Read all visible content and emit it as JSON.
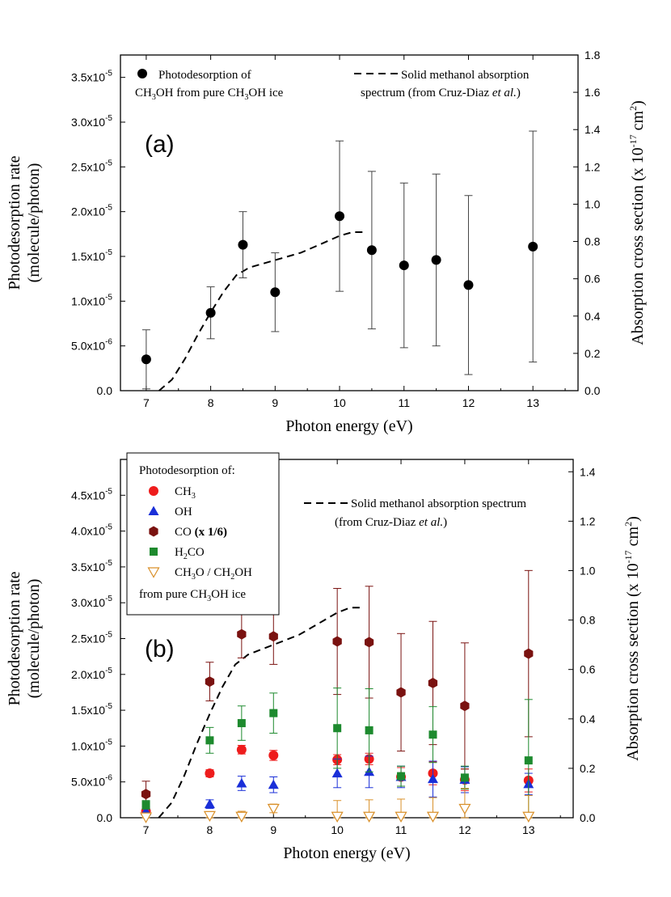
{
  "chart_data": [
    {
      "type": "scatter",
      "panel_label": "(a)",
      "xlabel": "Photon energy (eV)",
      "ylabel": [
        "Photodesorption rate",
        "(molecule/photon)"
      ],
      "y2label": [
        "Absorption cross section (x 10",
        "-17",
        " cm",
        "2",
        ")"
      ],
      "xlim": [
        6.6,
        13.7
      ],
      "ylim": [
        0,
        3.75e-05
      ],
      "y2lim": [
        0,
        1.8
      ],
      "x_ticks": [
        7,
        8,
        9,
        10,
        11,
        12,
        13
      ],
      "y_ticks": [
        {
          "value": 0,
          "base": "0.0",
          "exp": ""
        },
        {
          "value": 5e-06,
          "base": "5.0x10",
          "exp": "-6"
        },
        {
          "value": 1e-05,
          "base": "1.0x10",
          "exp": "-5"
        },
        {
          "value": 1.5e-05,
          "base": "1.5x10",
          "exp": "-5"
        },
        {
          "value": 2e-05,
          "base": "2.0x10",
          "exp": "-5"
        },
        {
          "value": 2.5e-05,
          "base": "2.5x10",
          "exp": "-5"
        },
        {
          "value": 3e-05,
          "base": "3.0x10",
          "exp": "-5"
        },
        {
          "value": 3.5e-05,
          "base": "3.5x10",
          "exp": "-5"
        }
      ],
      "y2_ticks": [
        "0.0",
        "0.2",
        "0.4",
        "0.6",
        "0.8",
        "1.0",
        "1.2",
        "1.4",
        "1.6",
        "1.8"
      ],
      "legend": [
        {
          "symbol": "dot",
          "lines": [
            [
              "Photodesorption of"
            ],
            [
              "CH",
              {
                "sub": "3"
              },
              "OH from pure CH",
              {
                "sub": "3"
              },
              "OH ice"
            ]
          ]
        },
        {
          "symbol": "dash",
          "lines": [
            [
              "Solid methanol absorption"
            ],
            [
              "spectrum (from Cruz-Diaz ",
              {
                "i": "et al."
              },
              ")"
            ]
          ]
        }
      ],
      "series": [
        {
          "name": "CH3OH",
          "marker": "circle",
          "color": "#000000",
          "x": [
            7,
            8,
            8.5,
            9,
            10,
            10.5,
            11,
            11.5,
            12,
            13
          ],
          "y": [
            3.5e-06,
            8.7e-06,
            1.63e-05,
            1.1e-05,
            1.95e-05,
            1.57e-05,
            1.4e-05,
            1.46e-05,
            1.18e-05,
            1.61e-05
          ],
          "err": [
            3.3e-06,
            2.9e-06,
            3.7e-06,
            4.4e-06,
            8.4e-06,
            8.8e-06,
            9.2e-06,
            9.6e-06,
            1e-05,
            1.29e-05
          ]
        }
      ],
      "absorption_spectrum": {
        "name": "Solid methanol absorption spectrum",
        "axis": "y2",
        "x": [
          7.2,
          7.4,
          7.6,
          7.8,
          8.0,
          8.2,
          8.4,
          8.6,
          8.8,
          9.0,
          9.2,
          9.4,
          9.6,
          9.8,
          10.0,
          10.2,
          10.4
        ],
        "y": [
          0.0,
          0.06,
          0.17,
          0.3,
          0.42,
          0.53,
          0.62,
          0.66,
          0.68,
          0.7,
          0.72,
          0.74,
          0.77,
          0.8,
          0.83,
          0.85,
          0.85
        ]
      }
    },
    {
      "type": "scatter",
      "panel_label": "(b)",
      "xlabel": "Photon energy (eV)",
      "ylabel": [
        "Photodesorption rate",
        "(molecule/photon)"
      ],
      "y2label": [
        "Absorption cross section (x 10",
        "-17",
        " cm",
        "2",
        ")"
      ],
      "xlim": [
        6.6,
        13.7
      ],
      "ylim": [
        0,
        5e-05
      ],
      "y2lim": [
        0,
        1.45
      ],
      "x_ticks": [
        7,
        8,
        9,
        10,
        11,
        12,
        13
      ],
      "y_ticks": [
        {
          "value": 0,
          "base": "0.0",
          "exp": ""
        },
        {
          "value": 5e-06,
          "base": "5.0x10",
          "exp": "-6"
        },
        {
          "value": 1e-05,
          "base": "1.0x10",
          "exp": "-5"
        },
        {
          "value": 1.5e-05,
          "base": "1.5x10",
          "exp": "-5"
        },
        {
          "value": 2e-05,
          "base": "2.0x10",
          "exp": "-5"
        },
        {
          "value": 2.5e-05,
          "base": "2.5x10",
          "exp": "-5"
        },
        {
          "value": 3e-05,
          "base": "3.0x10",
          "exp": "-5"
        },
        {
          "value": 3.5e-05,
          "base": "3.5x10",
          "exp": "-5"
        },
        {
          "value": 4e-05,
          "base": "4.0x10",
          "exp": "-5"
        },
        {
          "value": 4.5e-05,
          "base": "4.5x10",
          "exp": "-5"
        }
      ],
      "y2_ticks": [
        "0.0",
        "0.2",
        "0.4",
        "0.6",
        "0.8",
        "1.0",
        "1.2",
        "1.4"
      ],
      "legend_title": "Photodesorption of:",
      "legend_footer": [
        "from pure CH",
        {
          "sub": "3"
        },
        "OH ice"
      ],
      "legend_dash": [
        [
          "Solid methanol absorption spectrum"
        ],
        [
          "(from Cruz-Diaz ",
          {
            "i": "et al."
          },
          ")"
        ]
      ],
      "series": [
        {
          "name": "CH3",
          "label": [
            "CH",
            {
              "sub": "3"
            }
          ],
          "marker": "circle",
          "color": "#ee1c1c",
          "x": [
            7,
            8,
            8.5,
            9,
            10,
            10.5,
            11,
            11.5,
            12,
            13
          ],
          "y": [
            9e-07,
            6.2e-06,
            9.5e-06,
            8.7e-06,
            8.1e-06,
            8.2e-06,
            5.7e-06,
            6.2e-06,
            5.3e-06,
            5.2e-06
          ],
          "err": [
            4e-07,
            5e-07,
            6e-07,
            7e-07,
            7e-07,
            8e-07,
            1.3e-06,
            1.6e-06,
            1.5e-06,
            1.6e-06
          ]
        },
        {
          "name": "OH",
          "label": [
            "OH"
          ],
          "marker": "triangle",
          "color": "#1a2fd8",
          "x": [
            7,
            8,
            8.5,
            9,
            10,
            10.5,
            11,
            11.5,
            12,
            13
          ],
          "y": [
            9e-07,
            1.9e-06,
            4.8e-06,
            4.6e-06,
            6.2e-06,
            6.4e-06,
            5.7e-06,
            5.4e-06,
            5.3e-06,
            4.7e-06
          ],
          "err": [
            3e-07,
            6e-07,
            1e-06,
            1.1e-06,
            2e-06,
            2.2e-06,
            1.5e-06,
            2.5e-06,
            1.8e-06,
            1.5e-06
          ]
        },
        {
          "name": "CO (x 1/6)",
          "label": [
            "CO ",
            {
              "b": "(x 1/6)"
            }
          ],
          "marker": "hexagon",
          "color": "#7a1210",
          "x": [
            7,
            8,
            8.5,
            9,
            10,
            10.5,
            11,
            11.5,
            12,
            13
          ],
          "y": [
            3.3e-06,
            1.9e-05,
            2.56e-05,
            2.53e-05,
            2.46e-05,
            2.45e-05,
            1.75e-05,
            1.88e-05,
            1.56e-05,
            2.29e-05
          ],
          "err": [
            1.8e-06,
            2.7e-06,
            3.3e-06,
            3.9e-06,
            7.4e-06,
            7.8e-06,
            8.2e-06,
            8.6e-06,
            8.8e-06,
            1.16e-05
          ]
        },
        {
          "name": "H2CO",
          "label": [
            "H",
            {
              "sub": "2"
            },
            "CO"
          ],
          "marker": "square",
          "color": "#1d8a2e",
          "x": [
            7,
            8,
            8.5,
            9,
            10,
            10.5,
            11,
            11.5,
            12,
            13
          ],
          "y": [
            1.8e-06,
            1.08e-05,
            1.32e-05,
            1.46e-05,
            1.25e-05,
            1.22e-05,
            5.8e-06,
            1.16e-05,
            5.6e-06,
            8e-06
          ],
          "err": [
            6e-07,
            1.8e-06,
            2.4e-06,
            2.8e-06,
            5.6e-06,
            5.8e-06,
            1.4e-06,
            3.9e-06,
            1.6e-06,
            8.5e-06
          ]
        },
        {
          "name": "CH3O / CH2OH",
          "label": [
            "CH",
            {
              "sub": "3"
            },
            "O / CH",
            {
              "sub": "2"
            },
            "OH"
          ],
          "marker": "triangle-down-open",
          "color": "#d9902a",
          "x": [
            7,
            8,
            8.5,
            9,
            10,
            10.5,
            11,
            11.5,
            12,
            13
          ],
          "y": [
            1e-07,
            3e-07,
            2e-07,
            1.3e-06,
            2e-07,
            2e-07,
            2e-07,
            2e-07,
            1.3e-06,
            2e-07
          ],
          "err": [
            2e-07,
            3.5e-07,
            7e-07,
            6e-07,
            2.2e-06,
            2.3e-06,
            2.4e-06,
            2.6e-06,
            2.8e-06,
            2.9e-06
          ]
        }
      ],
      "absorption_spectrum": {
        "name": "Solid methanol absorption spectrum",
        "axis": "y2",
        "x": [
          7.2,
          7.4,
          7.6,
          7.8,
          8.0,
          8.2,
          8.4,
          8.6,
          8.8,
          9.0,
          9.2,
          9.4,
          9.6,
          9.8,
          10.0,
          10.2,
          10.4
        ],
        "y": [
          0.0,
          0.06,
          0.17,
          0.3,
          0.42,
          0.53,
          0.62,
          0.66,
          0.68,
          0.7,
          0.72,
          0.74,
          0.77,
          0.8,
          0.83,
          0.85,
          0.85
        ]
      }
    }
  ]
}
